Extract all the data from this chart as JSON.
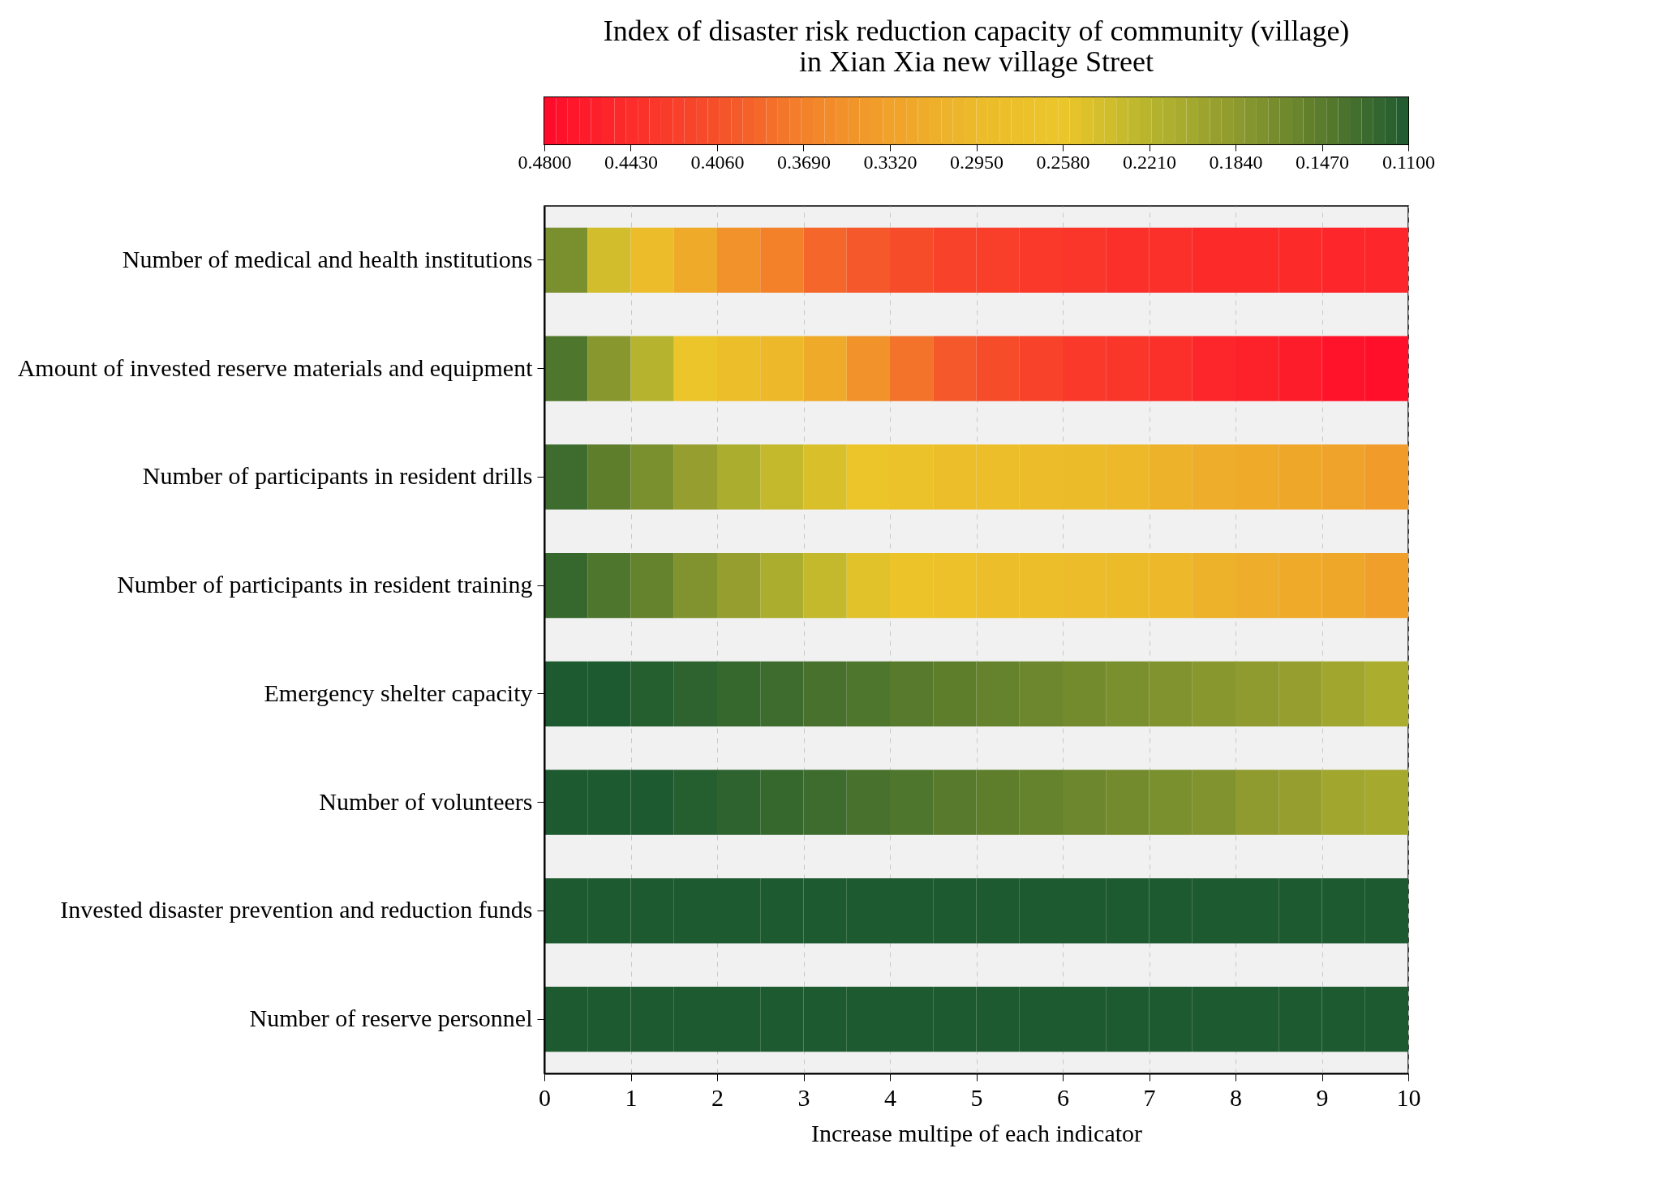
{
  "chart_data": {
    "type": "heatmap",
    "title": "Index of disaster risk reduction capacity of community (village)\nin Xian Xia new village Street",
    "xlabel": "Increase multipe of each indicator",
    "x": [
      0.25,
      0.75,
      1.25,
      1.75,
      2.25,
      2.75,
      3.25,
      3.75,
      4.25,
      4.75,
      5.25,
      5.75,
      6.25,
      6.75,
      7.25,
      7.75,
      8.25,
      8.75,
      9.25,
      9.75
    ],
    "xlim": [
      0,
      10
    ],
    "xticks": [
      0,
      1,
      2,
      3,
      4,
      5,
      6,
      7,
      8,
      9,
      10
    ],
    "grid": "x",
    "y_categories": [
      "Number of medical and health institutions",
      "Amount of invested reserve materials and equipment",
      "Number of participants in resident drills",
      "Number of participants in resident training",
      "Emergency shelter capacity",
      "Number of volunteers",
      "Invested disaster prevention and reduction funds",
      "Number of reserve personnel"
    ],
    "cells": [
      [
        0.17,
        0.24,
        0.29,
        0.32,
        0.35,
        0.37,
        0.39,
        0.4,
        0.41,
        0.42,
        0.425,
        0.43,
        0.435,
        0.44,
        0.44,
        0.445,
        0.445,
        0.445,
        0.45,
        0.45
      ],
      [
        0.14,
        0.18,
        0.22,
        0.26,
        0.28,
        0.3,
        0.32,
        0.35,
        0.38,
        0.4,
        0.41,
        0.42,
        0.43,
        0.435,
        0.44,
        0.45,
        0.455,
        0.46,
        0.47,
        0.475
      ],
      [
        0.13,
        0.15,
        0.17,
        0.19,
        0.21,
        0.23,
        0.245,
        0.26,
        0.27,
        0.28,
        0.285,
        0.29,
        0.295,
        0.3,
        0.31,
        0.315,
        0.32,
        0.325,
        0.33,
        0.34
      ],
      [
        0.125,
        0.14,
        0.155,
        0.175,
        0.19,
        0.21,
        0.23,
        0.25,
        0.265,
        0.275,
        0.28,
        0.285,
        0.29,
        0.295,
        0.3,
        0.31,
        0.315,
        0.32,
        0.325,
        0.335
      ],
      [
        0.11,
        0.11,
        0.115,
        0.12,
        0.125,
        0.13,
        0.135,
        0.14,
        0.145,
        0.15,
        0.155,
        0.16,
        0.165,
        0.17,
        0.175,
        0.18,
        0.185,
        0.19,
        0.2,
        0.21
      ],
      [
        0.11,
        0.11,
        0.11,
        0.115,
        0.12,
        0.125,
        0.13,
        0.135,
        0.14,
        0.145,
        0.15,
        0.155,
        0.16,
        0.165,
        0.17,
        0.175,
        0.185,
        0.19,
        0.2,
        0.205
      ],
      [
        0.11,
        0.11,
        0.11,
        0.11,
        0.11,
        0.11,
        0.11,
        0.11,
        0.11,
        0.11,
        0.11,
        0.11,
        0.11,
        0.11,
        0.11,
        0.11,
        0.11,
        0.11,
        0.11,
        0.11
      ],
      [
        0.11,
        0.11,
        0.11,
        0.11,
        0.11,
        0.11,
        0.11,
        0.11,
        0.11,
        0.11,
        0.11,
        0.11,
        0.11,
        0.11,
        0.11,
        0.11,
        0.11,
        0.11,
        0.11,
        0.11
      ]
    ],
    "clim": [
      0.11,
      0.48
    ],
    "cticks": [
      {
        "value": 0.48,
        "label": "0.4800"
      },
      {
        "value": 0.443,
        "label": "0.4430"
      },
      {
        "value": 0.406,
        "label": "0.4060"
      },
      {
        "value": 0.369,
        "label": "0.3690"
      },
      {
        "value": 0.332,
        "label": "0.3320"
      },
      {
        "value": 0.295,
        "label": "0.2950"
      },
      {
        "value": 0.258,
        "label": "0.2580"
      },
      {
        "value": 0.221,
        "label": "0.2210"
      },
      {
        "value": 0.184,
        "label": "0.1840"
      },
      {
        "value": 0.147,
        "label": "0.1470"
      },
      {
        "value": 0.11,
        "label": "0.1100"
      }
    ],
    "colors": [
      "#1e5a30",
      "#5a7c2c",
      "#8e9a2e",
      "#b7b52e",
      "#ecc62a",
      "#ecbb2a",
      "#f0a22a",
      "#f3822a",
      "#f5502a",
      "#fc2d2a",
      "#ff0a2a"
    ]
  }
}
